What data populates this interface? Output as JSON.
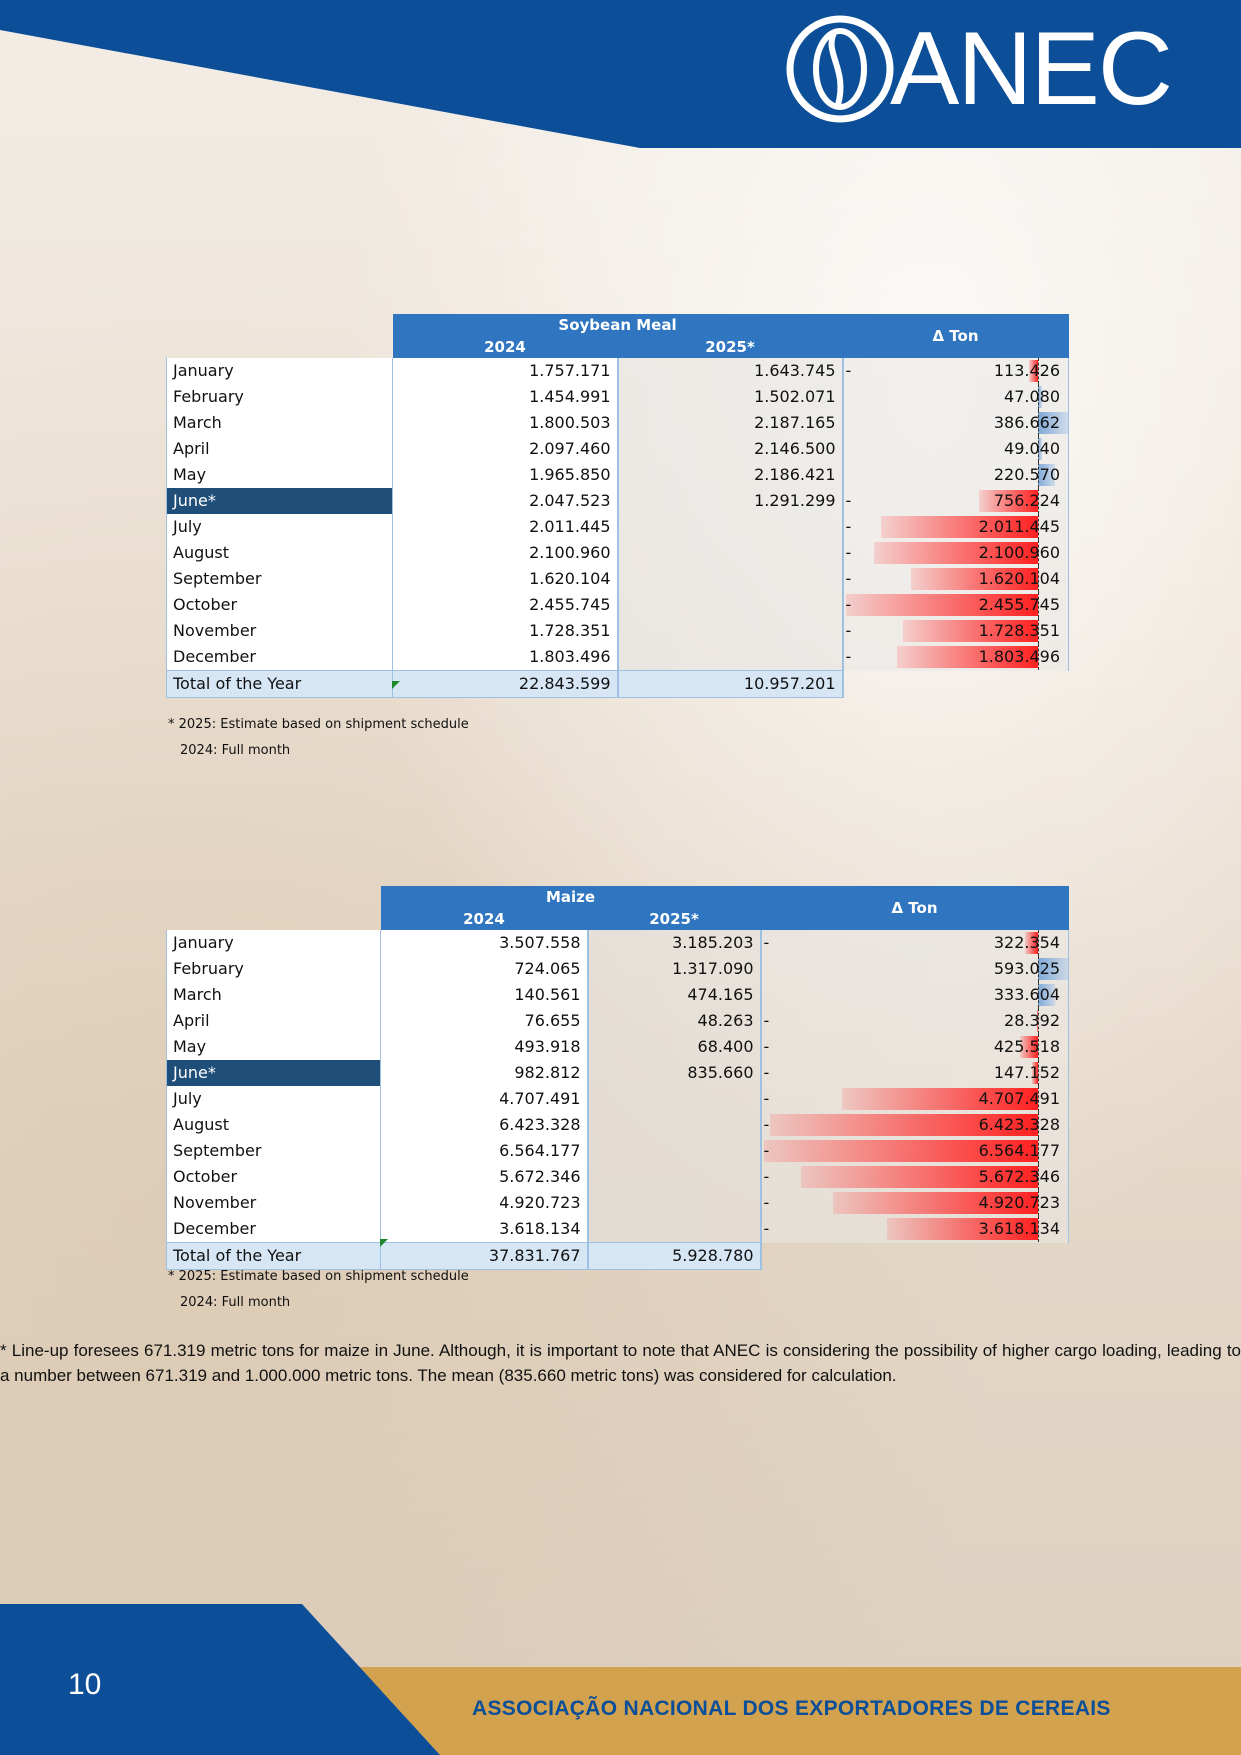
{
  "brand": {
    "logo_text": "ANEC",
    "colors": {
      "blue": "#0c4f98",
      "gold": "#d3a24f",
      "neg_bar": "#ff2020",
      "pos_bar": "#7fa9d8"
    }
  },
  "soy": {
    "title": "Soybean Meal",
    "col_2024": "2024",
    "col_2025": "2025*",
    "col_delta": "Δ Ton",
    "rows": [
      {
        "month": "January",
        "v2024": "1.757.171",
        "v2025": "1.643.745",
        "sign": "-",
        "delta": "113.426",
        "dv": -113426
      },
      {
        "month": "February",
        "v2024": "1.454.991",
        "v2025": "1.502.071",
        "sign": "",
        "delta": "47.080",
        "dv": 47080
      },
      {
        "month": "March",
        "v2024": "1.800.503",
        "v2025": "2.187.165",
        "sign": "",
        "delta": "386.662",
        "dv": 386662
      },
      {
        "month": "April",
        "v2024": "2.097.460",
        "v2025": "2.146.500",
        "sign": "",
        "delta": "49.040",
        "dv": 49040
      },
      {
        "month": "May",
        "v2024": "1.965.850",
        "v2025": "2.186.421",
        "sign": "",
        "delta": "220.570",
        "dv": 220570
      },
      {
        "month": "June*",
        "v2024": "2.047.523",
        "v2025": "1.291.299",
        "sign": "-",
        "delta": "756.224",
        "dv": -756224
      },
      {
        "month": "July",
        "v2024": "2.011.445",
        "v2025": "",
        "sign": "-",
        "delta": "2.011.445",
        "dv": -2011445
      },
      {
        "month": "August",
        "v2024": "2.100.960",
        "v2025": "",
        "sign": "-",
        "delta": "2.100.960",
        "dv": -2100960
      },
      {
        "month": "September",
        "v2024": "1.620.104",
        "v2025": "",
        "sign": "-",
        "delta": "1.620.104",
        "dv": -1620104
      },
      {
        "month": "October",
        "v2024": "2.455.745",
        "v2025": "",
        "sign": "-",
        "delta": "2.455.745",
        "dv": -2455745
      },
      {
        "month": "November",
        "v2024": "1.728.351",
        "v2025": "",
        "sign": "-",
        "delta": "1.728.351",
        "dv": -1728351
      },
      {
        "month": "December",
        "v2024": "1.803.496",
        "v2025": "",
        "sign": "-",
        "delta": "1.803.496",
        "dv": -1803496
      }
    ],
    "total": {
      "label": "Total of the Year",
      "v2024": "22.843.599",
      "v2025": "10.957.201"
    },
    "note1": "* 2025: Estimate based on shipment schedule",
    "note2": "2024: Full month"
  },
  "maize": {
    "title": "Maize",
    "col_2024": "2024",
    "col_2025": "2025*",
    "col_delta": "Δ Ton",
    "rows": [
      {
        "month": "January",
        "v2024": "3.507.558",
        "v2025": "3.185.203",
        "sign": "-",
        "delta": "322.354",
        "dv": -322354
      },
      {
        "month": "February",
        "v2024": "724.065",
        "v2025": "1.317.090",
        "sign": "",
        "delta": "593.025",
        "dv": 593025
      },
      {
        "month": "March",
        "v2024": "140.561",
        "v2025": "474.165",
        "sign": "",
        "delta": "333.604",
        "dv": 333604
      },
      {
        "month": "April",
        "v2024": "76.655",
        "v2025": "48.263",
        "sign": "-",
        "delta": "28.392",
        "dv": -28392
      },
      {
        "month": "May",
        "v2024": "493.918",
        "v2025": "68.400",
        "sign": "-",
        "delta": "425.518",
        "dv": -425518
      },
      {
        "month": "June*",
        "v2024": "982.812",
        "v2025": "835.660",
        "sign": "-",
        "delta": "147.152",
        "dv": -147152
      },
      {
        "month": "July",
        "v2024": "4.707.491",
        "v2025": "",
        "sign": "-",
        "delta": "4.707.491",
        "dv": -4707491
      },
      {
        "month": "August",
        "v2024": "6.423.328",
        "v2025": "",
        "sign": "-",
        "delta": "6.423.328",
        "dv": -6423328
      },
      {
        "month": "September",
        "v2024": "6.564.177",
        "v2025": "",
        "sign": "-",
        "delta": "6.564.177",
        "dv": -6564177
      },
      {
        "month": "October",
        "v2024": "5.672.346",
        "v2025": "",
        "sign": "-",
        "delta": "5.672.346",
        "dv": -5672346
      },
      {
        "month": "November",
        "v2024": "4.920.723",
        "v2025": "",
        "sign": "-",
        "delta": "4.920.723",
        "dv": -4920723
      },
      {
        "month": "December",
        "v2024": "3.618.134",
        "v2025": "",
        "sign": "-",
        "delta": "3.618.134",
        "dv": -3618134
      }
    ],
    "total": {
      "label": "Total of the Year",
      "v2024": "37.831.767",
      "v2025": "5.928.780"
    },
    "note1": "* 2025: Estimate based on shipment schedule",
    "note2": "2024: Full month"
  },
  "footnote": "* Line-up foresees 671.319 metric tons for maize in June. Although, it is important to note that ANEC is considering the possibility of higher cargo loading, leading to a number between 671.319 and 1.000.000 metric tons. The mean (835.660 metric tons) was considered for calculation.",
  "footer": {
    "page_number": "10",
    "org_name": "ASSOCIAÇÃO NACIONAL DOS EXPORTADORES DE CEREAIS"
  }
}
